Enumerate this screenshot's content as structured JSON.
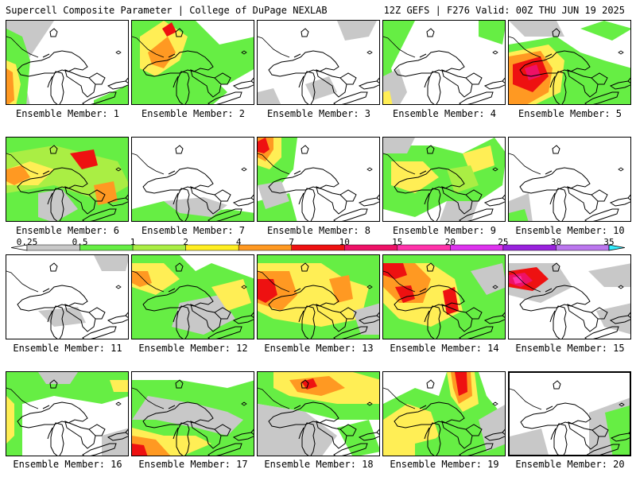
{
  "header": {
    "title_left": "Supercell Composite Parameter | College of DuPage NEXLAB",
    "title_right": "12Z GEFS | F276 Valid: 00Z THU JUN 19 2025"
  },
  "panels": [
    {
      "label": "Ensemble Member: 1"
    },
    {
      "label": "Ensemble Member: 2"
    },
    {
      "label": "Ensemble Member: 3"
    },
    {
      "label": "Ensemble Member: 4"
    },
    {
      "label": "Ensemble Member: 5"
    },
    {
      "label": "Ensemble Member: 6"
    },
    {
      "label": "Ensemble Member: 7"
    },
    {
      "label": "Ensemble Member: 8"
    },
    {
      "label": "Ensemble Member: 9"
    },
    {
      "label": "Ensemble Member: 10"
    },
    {
      "label": "Ensemble Member: 11"
    },
    {
      "label": "Ensemble Member: 12"
    },
    {
      "label": "Ensemble Member: 13"
    },
    {
      "label": "Ensemble Member: 14"
    },
    {
      "label": "Ensemble Member: 15"
    },
    {
      "label": "Ensemble Member: 16"
    },
    {
      "label": "Ensemble Member: 17"
    },
    {
      "label": "Ensemble Member: 18"
    },
    {
      "label": "Ensemble Member: 19"
    },
    {
      "label": "Ensemble Member: 20"
    }
  ],
  "colorbar": {
    "labels": [
      "0.25",
      "0.5",
      "1",
      "2",
      "4",
      "7",
      "10",
      "15",
      "20",
      "25",
      "30",
      "35"
    ],
    "colors": [
      "#ffffff",
      "#c8c8c8",
      "#66ee44",
      "#aaee44",
      "#ffee22",
      "#ff9922",
      "#ee1111",
      "#ee1166",
      "#ff33aa",
      "#dd33ee",
      "#9922dd",
      "#bb77ee",
      "#33eeff"
    ]
  },
  "field_colors": {
    "gray": "#c8c8c8",
    "green": "#66ee44",
    "lightgreen": "#aaee44",
    "yellow": "#ffee55",
    "orange": "#ff9922",
    "red": "#ee1111",
    "crimson": "#ee1166",
    "magenta": "#ff33aa"
  }
}
